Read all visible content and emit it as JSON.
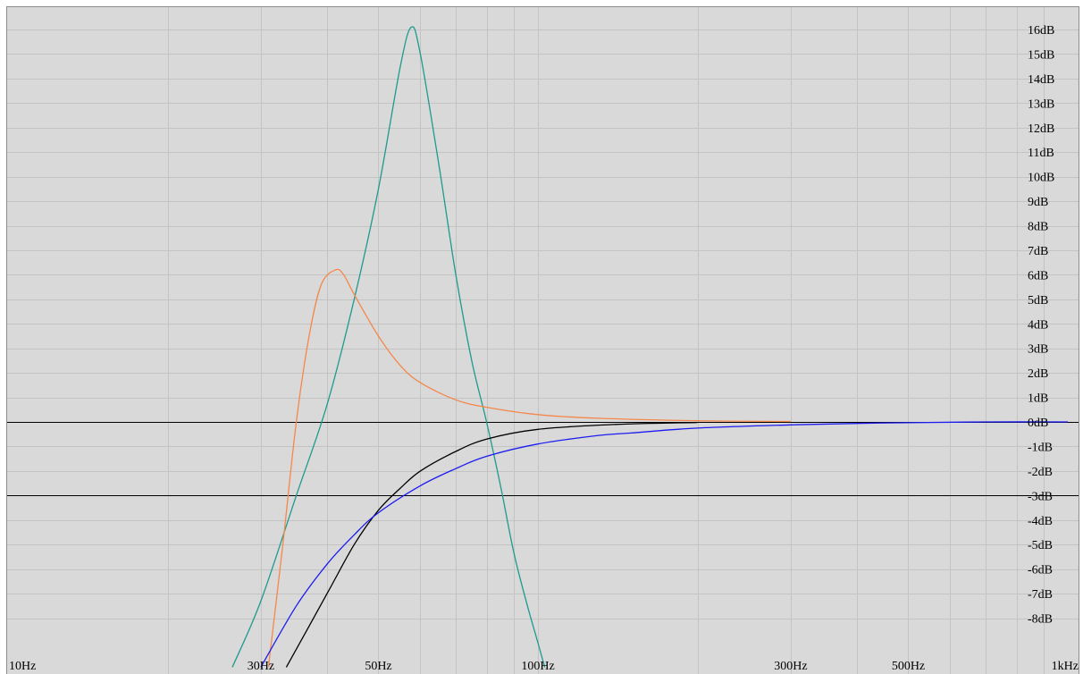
{
  "colors": {
    "background": "#d9d9d9",
    "grid": "#c3c3c3",
    "frame": "#8c8c8c",
    "reference_lines": "#000000",
    "tick_text": "#000000"
  },
  "chart_data": {
    "type": "line",
    "title": "",
    "xlabel": "",
    "ylabel": "",
    "x_scale": "log",
    "xlim": [
      10,
      1000
    ],
    "ylim": [
      -9,
      16.5
    ],
    "grid": true,
    "x_gridlines": [
      20,
      30,
      40,
      50,
      60,
      70,
      80,
      90,
      100,
      200,
      300,
      400,
      500,
      600,
      700,
      800,
      900
    ],
    "y_gridlines": [
      16,
      15,
      14,
      13,
      12,
      11,
      10,
      9,
      8,
      7,
      6,
      5,
      4,
      3,
      2,
      1,
      0,
      -1,
      -2,
      -3,
      -4,
      -5,
      -6,
      -7,
      -8
    ],
    "reference_lines": [
      0,
      -3
    ],
    "x_ticks": [
      {
        "value": 10,
        "label": "10Hz"
      },
      {
        "value": 30,
        "label": "30Hz"
      },
      {
        "value": 50,
        "label": "50Hz"
      },
      {
        "value": 100,
        "label": "100Hz"
      },
      {
        "value": 300,
        "label": "300Hz"
      },
      {
        "value": 500,
        "label": "500Hz"
      },
      {
        "value": 1000,
        "label": "1kHz"
      }
    ],
    "y_ticks": [
      {
        "value": 16,
        "label": "16dB"
      },
      {
        "value": 15,
        "label": "15dB"
      },
      {
        "value": 14,
        "label": "14dB"
      },
      {
        "value": 13,
        "label": "13dB"
      },
      {
        "value": 12,
        "label": "12dB"
      },
      {
        "value": 11,
        "label": "11dB"
      },
      {
        "value": 10,
        "label": "10dB"
      },
      {
        "value": 9,
        "label": "9dB"
      },
      {
        "value": 8,
        "label": "8dB"
      },
      {
        "value": 7,
        "label": "7dB"
      },
      {
        "value": 6,
        "label": "6dB"
      },
      {
        "value": 5,
        "label": "5dB"
      },
      {
        "value": 4,
        "label": "4dB"
      },
      {
        "value": 3,
        "label": "3dB"
      },
      {
        "value": 2,
        "label": "2dB"
      },
      {
        "value": 1,
        "label": "1dB"
      },
      {
        "value": 0,
        "label": "0dB"
      },
      {
        "value": -1,
        "label": "-1dB"
      },
      {
        "value": -2,
        "label": "-2dB"
      },
      {
        "value": -3,
        "label": "-3dB"
      },
      {
        "value": -4,
        "label": "-4dB"
      },
      {
        "value": -5,
        "label": "-5dB"
      },
      {
        "value": -6,
        "label": "-6dB"
      },
      {
        "value": -7,
        "label": "-7dB"
      },
      {
        "value": -8,
        "label": "-8dB"
      }
    ],
    "series": [
      {
        "color": "#1e9a8e",
        "points": [
          [
            26.5,
            -10
          ],
          [
            30,
            -7.3
          ],
          [
            35,
            -3.0
          ],
          [
            40,
            0.7
          ],
          [
            45,
            5.0
          ],
          [
            50,
            9.5
          ],
          [
            55,
            14.5
          ],
          [
            57.7,
            16.1
          ],
          [
            60,
            15.0
          ],
          [
            65,
            10.5
          ],
          [
            70,
            6.0
          ],
          [
            75,
            2.5
          ],
          [
            80,
            0.0
          ],
          [
            85,
            -2.6
          ],
          [
            90,
            -5.3
          ],
          [
            95,
            -7.3
          ],
          [
            100,
            -9.0
          ],
          [
            103,
            -10
          ]
        ]
      },
      {
        "color": "#f4884a",
        "points": [
          [
            31,
            -10
          ],
          [
            33,
            -5.0
          ],
          [
            35,
            0.0
          ],
          [
            37,
            3.5
          ],
          [
            39,
            5.6
          ],
          [
            41.5,
            6.2
          ],
          [
            43,
            6.0
          ],
          [
            45,
            5.2
          ],
          [
            50,
            3.5
          ],
          [
            55,
            2.3
          ],
          [
            60,
            1.6
          ],
          [
            70,
            0.9
          ],
          [
            80,
            0.6
          ],
          [
            100,
            0.3
          ],
          [
            130,
            0.15
          ],
          [
            200,
            0.05
          ],
          [
            300,
            0.02
          ]
        ]
      },
      {
        "color": "#000000",
        "points": [
          [
            33.5,
            -10
          ],
          [
            40,
            -7.0
          ],
          [
            45,
            -5.0
          ],
          [
            50,
            -3.6
          ],
          [
            55,
            -2.7
          ],
          [
            60,
            -2.0
          ],
          [
            70,
            -1.2
          ],
          [
            80,
            -0.7
          ],
          [
            100,
            -0.3
          ],
          [
            140,
            -0.1
          ],
          [
            200,
            -0.02
          ]
        ]
      },
      {
        "color": "#1c1cf0",
        "points": [
          [
            30,
            -10
          ],
          [
            35,
            -7.5
          ],
          [
            40,
            -5.8
          ],
          [
            45,
            -4.6
          ],
          [
            50,
            -3.7
          ],
          [
            60,
            -2.6
          ],
          [
            70,
            -1.9
          ],
          [
            80,
            -1.4
          ],
          [
            100,
            -0.9
          ],
          [
            130,
            -0.55
          ],
          [
            150,
            -0.45
          ],
          [
            200,
            -0.25
          ],
          [
            300,
            -0.12
          ],
          [
            400,
            -0.06
          ],
          [
            500,
            -0.03
          ],
          [
            700,
            0.0
          ],
          [
            1000,
            0.0
          ]
        ]
      }
    ]
  }
}
